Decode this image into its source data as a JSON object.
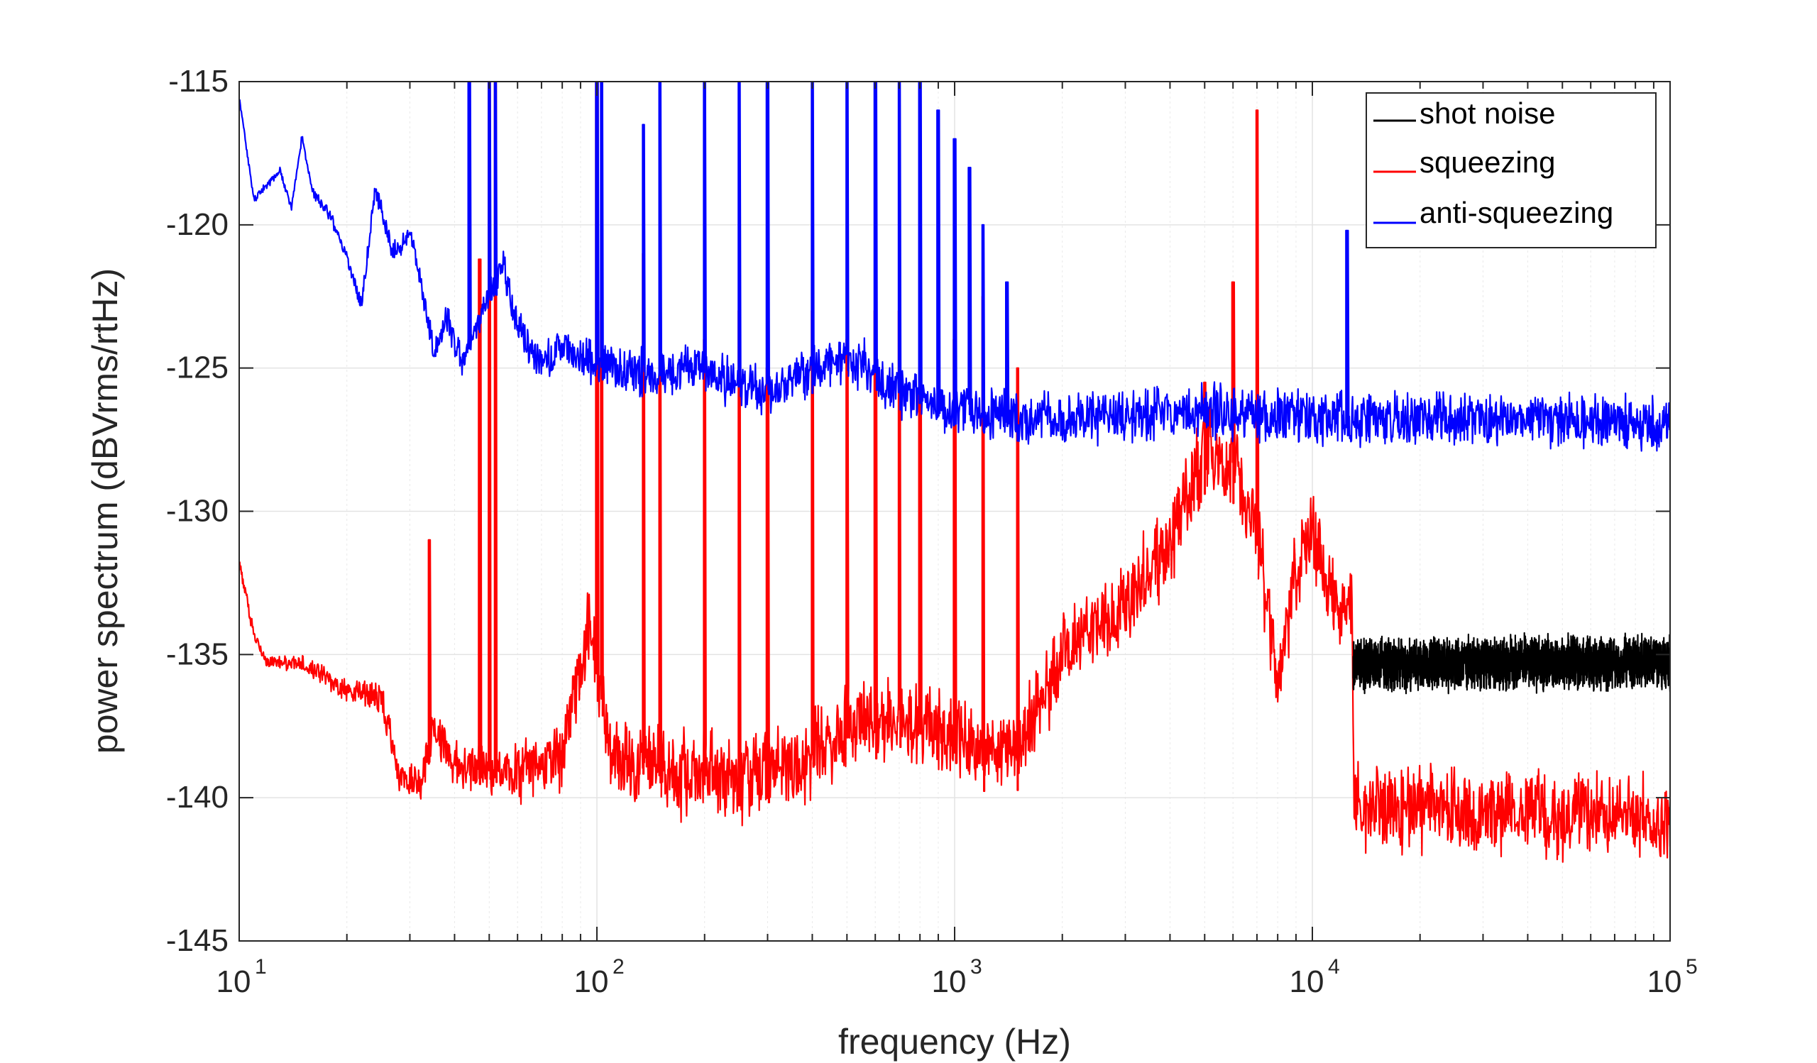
{
  "chart_data": {
    "type": "line",
    "xlabel": "frequency (Hz)",
    "ylabel": "power spectrum (dBVrms/rtHz)",
    "xscale": "log",
    "xlim": [
      10,
      100000
    ],
    "ylim": [
      -145,
      -115
    ],
    "x_ticks": [
      {
        "base": "10",
        "exp": "1",
        "value": 10
      },
      {
        "base": "10",
        "exp": "2",
        "value": 100
      },
      {
        "base": "10",
        "exp": "3",
        "value": 1000
      },
      {
        "base": "10",
        "exp": "4",
        "value": 10000
      },
      {
        "base": "10",
        "exp": "5",
        "value": 100000
      }
    ],
    "y_ticks": [
      "-115",
      "-120",
      "-125",
      "-130",
      "-135",
      "-140",
      "-145"
    ],
    "grid": true,
    "legend_position": "top-right",
    "series": [
      {
        "name": "shot noise",
        "color": "#000000",
        "baseline": [
          [
            13000,
            -135.3
          ],
          [
            100000,
            -135.3
          ]
        ],
        "noise_amplitude": 0.9,
        "spikes": []
      },
      {
        "name": "squeezing",
        "color": "#ff0000",
        "baseline": [
          [
            10,
            -131.8
          ],
          [
            11,
            -134.3
          ],
          [
            12,
            -135.3
          ],
          [
            15,
            -135.3
          ],
          [
            20,
            -136.3
          ],
          [
            25,
            -136.5
          ],
          [
            28,
            -139.2
          ],
          [
            32,
            -139.5
          ],
          [
            35,
            -137.5
          ],
          [
            40,
            -138.8
          ],
          [
            60,
            -139.2
          ],
          [
            80,
            -138.5
          ],
          [
            95,
            -134.0
          ],
          [
            110,
            -138.5
          ],
          [
            150,
            -139.0
          ],
          [
            200,
            -139.3
          ],
          [
            300,
            -139.3
          ],
          [
            400,
            -138.5
          ],
          [
            500,
            -137.5
          ],
          [
            700,
            -137.3
          ],
          [
            1000,
            -138.0
          ],
          [
            1500,
            -138.5
          ],
          [
            2000,
            -135.0
          ],
          [
            3000,
            -133.3
          ],
          [
            4000,
            -131.0
          ],
          [
            5000,
            -128.0
          ],
          [
            6000,
            -128.3
          ],
          [
            7000,
            -130.5
          ],
          [
            8000,
            -136.0
          ],
          [
            9000,
            -132.0
          ],
          [
            10000,
            -131.0
          ],
          [
            12000,
            -133.5
          ],
          [
            12900,
            -133.0
          ],
          [
            13100,
            -140.5
          ],
          [
            20000,
            -140.3
          ],
          [
            40000,
            -140.5
          ],
          [
            100000,
            -140.8
          ]
        ],
        "noise_amplitude": 1.5,
        "spikes": [
          {
            "f": 34,
            "v": -131
          },
          {
            "f": 47,
            "v": -121.2
          },
          {
            "f": 50,
            "v": -115
          },
          {
            "f": 52,
            "v": -115
          },
          {
            "f": 100,
            "v": -115
          },
          {
            "f": 103,
            "v": -123
          },
          {
            "f": 135,
            "v": -121
          },
          {
            "f": 150,
            "v": -123
          },
          {
            "f": 200,
            "v": -124
          },
          {
            "f": 250,
            "v": -123
          },
          {
            "f": 300,
            "v": -125
          },
          {
            "f": 400,
            "v": -123
          },
          {
            "f": 500,
            "v": -124
          },
          {
            "f": 600,
            "v": -123
          },
          {
            "f": 700,
            "v": -123
          },
          {
            "f": 800,
            "v": -123
          },
          {
            "f": 1000,
            "v": -124
          },
          {
            "f": 1200,
            "v": -122.5
          },
          {
            "f": 1500,
            "v": -125
          },
          {
            "f": 5000,
            "v": -125.5
          },
          {
            "f": 6000,
            "v": -122
          },
          {
            "f": 7000,
            "v": -116
          }
        ]
      },
      {
        "name": "anti-squeezing",
        "color": "#0000ff",
        "baseline": [
          [
            10,
            -115.6
          ],
          [
            11,
            -119.1
          ],
          [
            12,
            -118.6
          ],
          [
            13,
            -118.1
          ],
          [
            14,
            -119.4
          ],
          [
            15,
            -116.9
          ],
          [
            16,
            -118.8
          ],
          [
            18,
            -119.7
          ],
          [
            20,
            -121.2
          ],
          [
            22,
            -122.8
          ],
          [
            24,
            -118.7
          ],
          [
            27,
            -121.0
          ],
          [
            30,
            -120.2
          ],
          [
            32,
            -121.8
          ],
          [
            35,
            -124.5
          ],
          [
            38,
            -123.2
          ],
          [
            42,
            -124.8
          ],
          [
            48,
            -123.0
          ],
          [
            55,
            -121.5
          ],
          [
            60,
            -123.5
          ],
          [
            70,
            -124.8
          ],
          [
            80,
            -124.3
          ],
          [
            100,
            -124.8
          ],
          [
            120,
            -125.1
          ],
          [
            150,
            -125.3
          ],
          [
            200,
            -125.1
          ],
          [
            300,
            -125.8
          ],
          [
            500,
            -124.6
          ],
          [
            700,
            -125.8
          ],
          [
            1000,
            -126.4
          ],
          [
            1500,
            -126.7
          ],
          [
            3000,
            -126.7
          ],
          [
            5000,
            -126.5
          ],
          [
            10000,
            -126.8
          ],
          [
            30000,
            -126.8
          ],
          [
            100000,
            -126.9
          ]
        ],
        "noise_amplitude": 0.9,
        "spikes": [
          {
            "f": 44,
            "v": -115
          },
          {
            "f": 50,
            "v": -115
          },
          {
            "f": 52,
            "v": -115
          },
          {
            "f": 100,
            "v": -115
          },
          {
            "f": 103,
            "v": -115
          },
          {
            "f": 135,
            "v": -116.5
          },
          {
            "f": 150,
            "v": -115
          },
          {
            "f": 200,
            "v": -115
          },
          {
            "f": 250,
            "v": -115
          },
          {
            "f": 300,
            "v": -115
          },
          {
            "f": 400,
            "v": -115
          },
          {
            "f": 500,
            "v": -115
          },
          {
            "f": 600,
            "v": -115
          },
          {
            "f": 700,
            "v": -115
          },
          {
            "f": 800,
            "v": -115
          },
          {
            "f": 900,
            "v": -116
          },
          {
            "f": 1000,
            "v": -117
          },
          {
            "f": 1100,
            "v": -118
          },
          {
            "f": 1200,
            "v": -120
          },
          {
            "f": 1400,
            "v": -122
          },
          {
            "f": 12500,
            "v": -120.2
          }
        ]
      }
    ]
  }
}
